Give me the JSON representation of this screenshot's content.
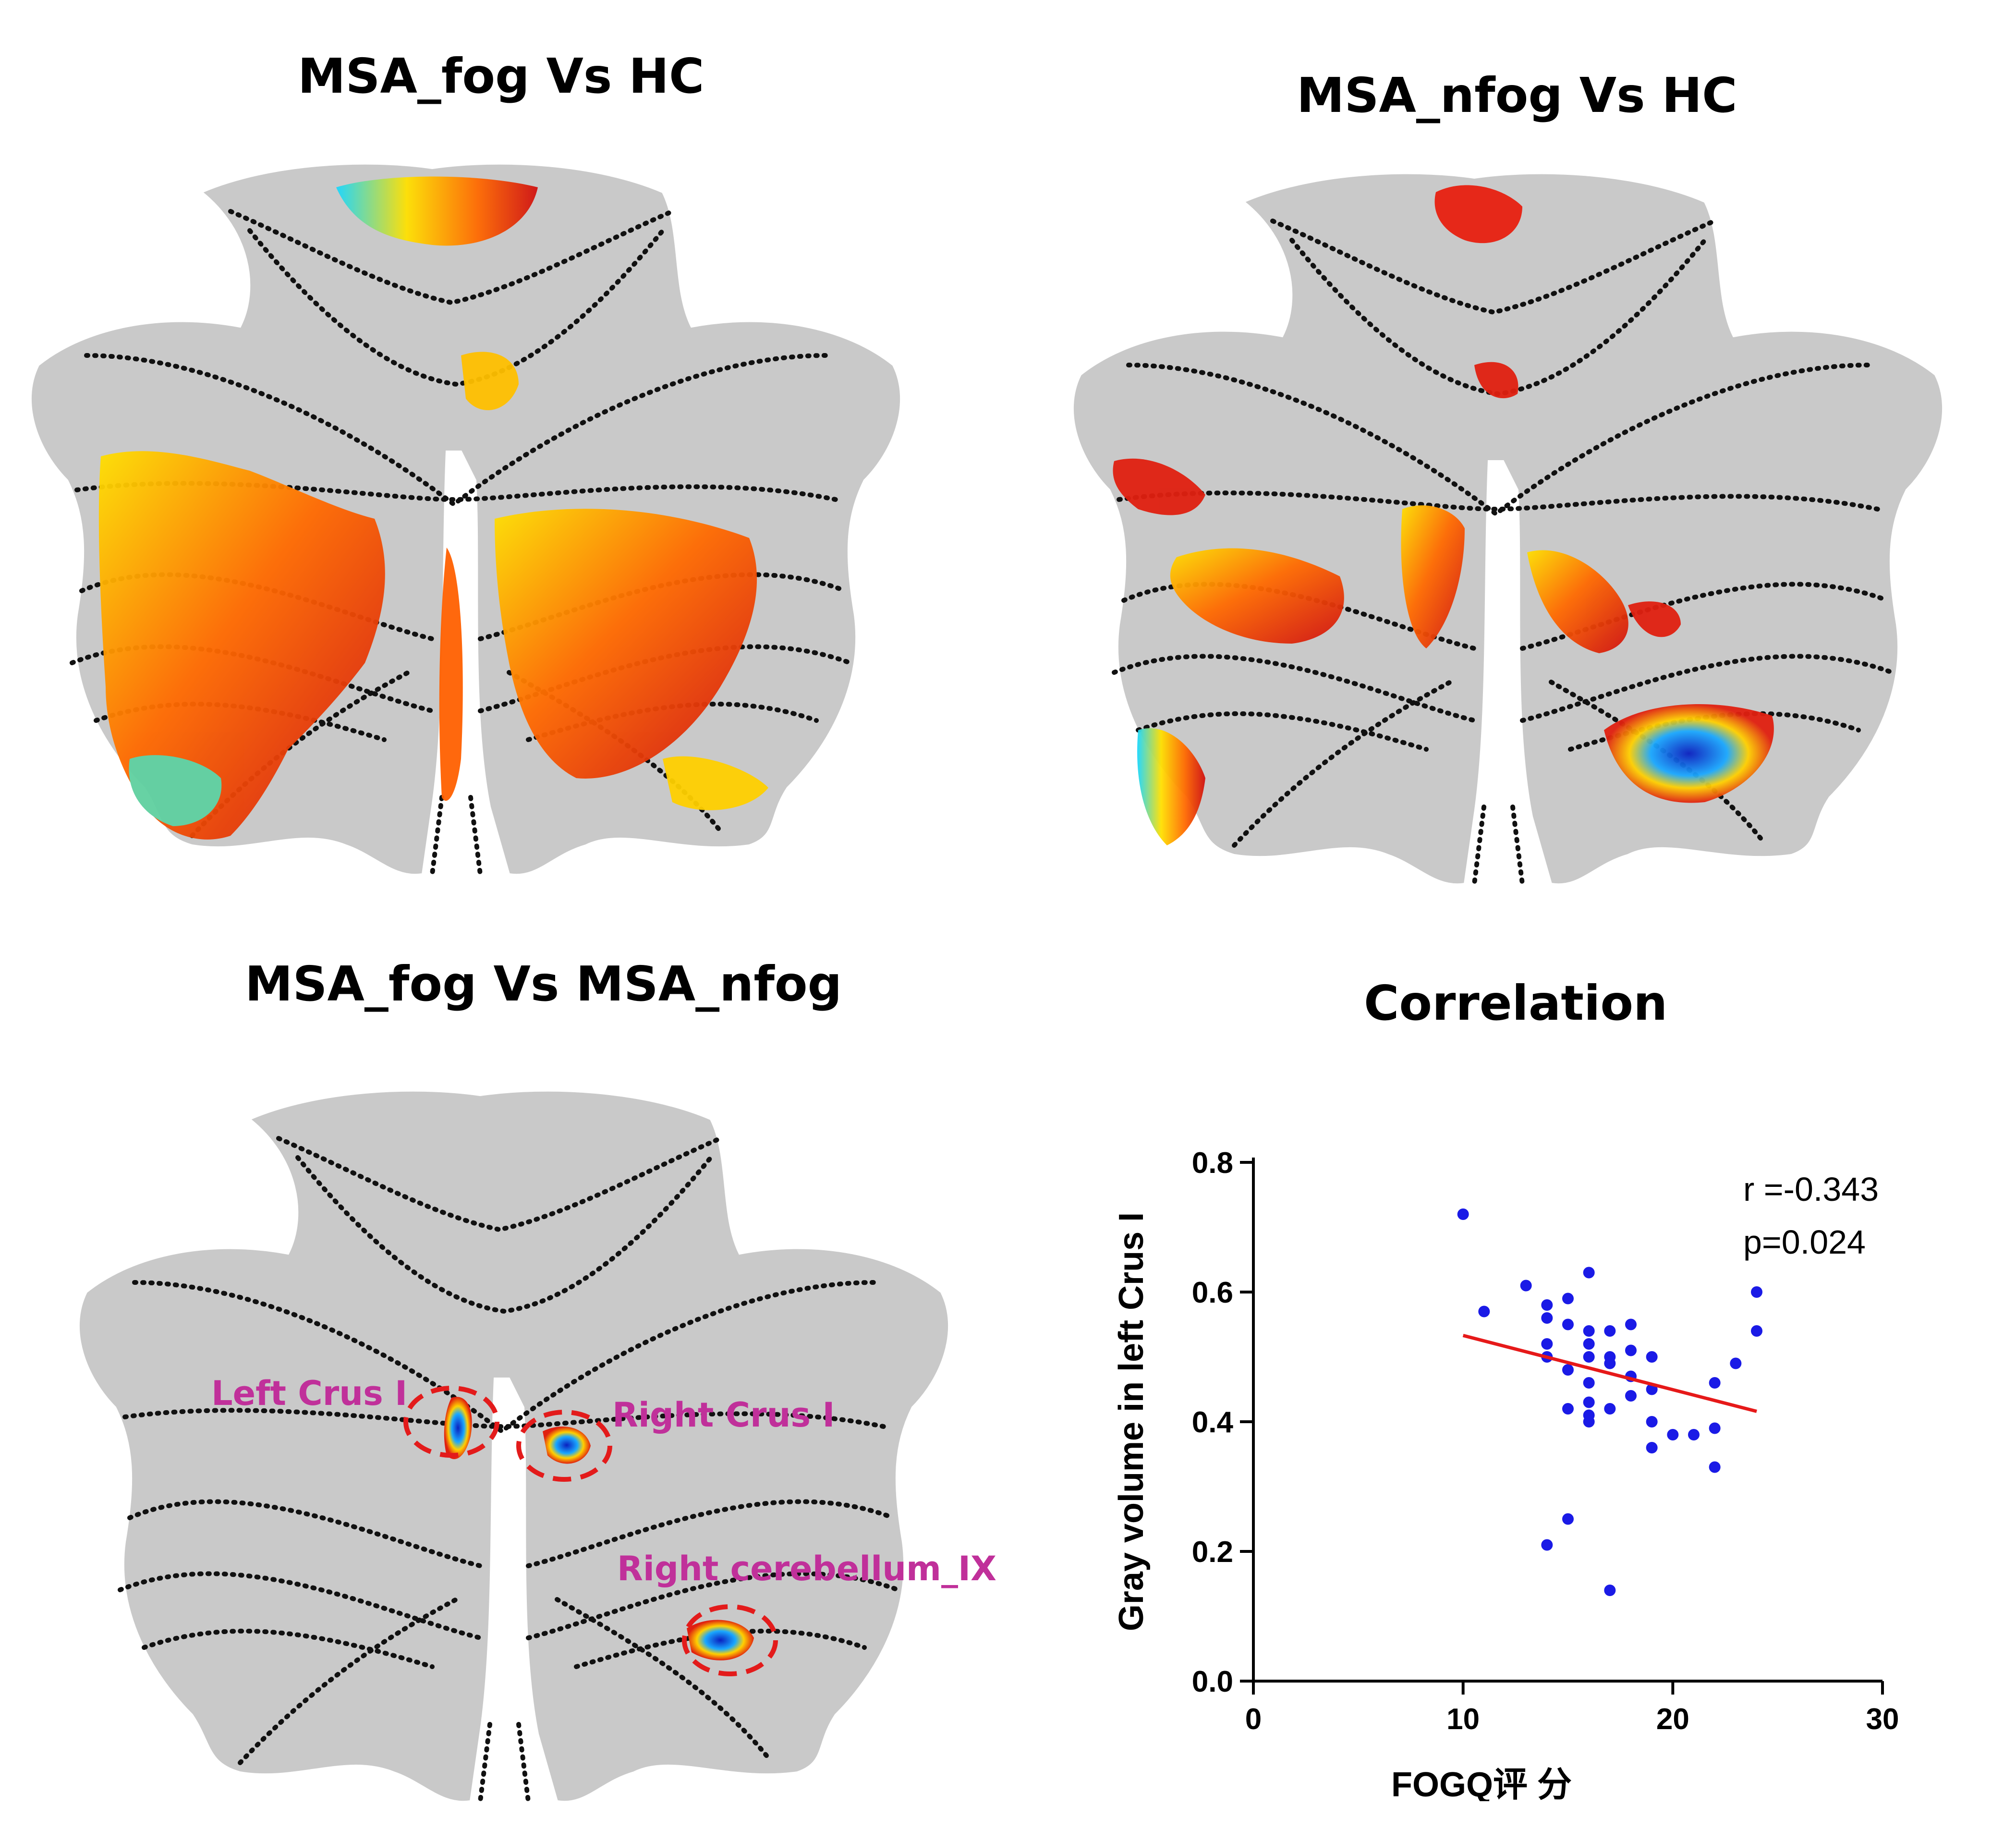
{
  "panels": {
    "top_left": {
      "title": "MSA_fog Vs HC"
    },
    "top_right": {
      "title": "MSA_nfog Vs HC"
    },
    "bottom_left": {
      "title": "MSA_fog Vs MSA_nfog",
      "roi_labels": [
        "Left Crus I",
        "Right Crus I",
        "Right cerebellum_IX"
      ]
    },
    "bottom_right": {
      "title": "Correlation"
    }
  },
  "colors": {
    "scatter_point": "#1a1ae6",
    "fit_line": "#e61919",
    "roi_circle": "#e31b1b",
    "roi_text": "#c0309a",
    "map_gray": "#c9c9c9"
  },
  "chart_data": {
    "type": "scatter",
    "xlabel": "FOGQ评 分",
    "ylabel": "Gray volume in left Crus I",
    "xlim": [
      0,
      30
    ],
    "ylim": [
      0.0,
      0.8
    ],
    "x_ticks": [
      "0",
      "10",
      "20",
      "30"
    ],
    "y_ticks": [
      "0.0",
      "0.2",
      "0.4",
      "0.6",
      "0.8"
    ],
    "annotations": [
      "r =-0.343",
      "p=0.024"
    ],
    "points": {
      "x": [
        10,
        11,
        13,
        14,
        14,
        14,
        14,
        15,
        15,
        15,
        15,
        16,
        16,
        16,
        16,
        16,
        16,
        16,
        16,
        17,
        17,
        17,
        17,
        18,
        18,
        18,
        18,
        19,
        19,
        19,
        19,
        20,
        21,
        22,
        22,
        22,
        23,
        24,
        24,
        14,
        15,
        17
      ],
      "y": [
        0.72,
        0.57,
        0.61,
        0.58,
        0.56,
        0.5,
        0.52,
        0.59,
        0.55,
        0.48,
        0.42,
        0.63,
        0.54,
        0.52,
        0.5,
        0.46,
        0.43,
        0.41,
        0.4,
        0.54,
        0.5,
        0.49,
        0.42,
        0.55,
        0.51,
        0.47,
        0.44,
        0.5,
        0.45,
        0.4,
        0.36,
        0.38,
        0.38,
        0.46,
        0.39,
        0.33,
        0.49,
        0.6,
        0.54,
        0.21,
        0.25,
        0.14
      ]
    },
    "fit_line": {
      "x": [
        10,
        24
      ],
      "y": [
        0.533,
        0.416
      ]
    },
    "grid": false
  }
}
